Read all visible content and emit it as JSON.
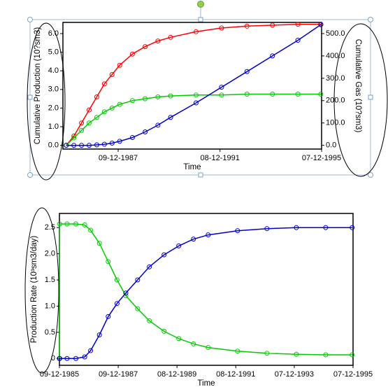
{
  "chart_data": [
    {
      "type": "line",
      "ylabel": "Cumulative Production (10?sm3)",
      "y2label": "Cumulative Gas (10?sm3)",
      "xlabel": "Time",
      "x": [
        1985.9,
        1986.2,
        1986.5,
        1986.8,
        1987.1,
        1987.4,
        1987.7,
        1988.0,
        1988.5,
        1989.0,
        1989.5,
        1990.0,
        1991.0,
        1992.0,
        1993.0,
        1994.0,
        1995.0,
        1995.9
      ],
      "xlim": [
        1985.77,
        1995.93
      ],
      "xticks": [
        {
          "value": 1987.94,
          "label": "09-12-1987"
        },
        {
          "value": 1991.94,
          "label": "08-12-1991"
        },
        {
          "value": 1995.93,
          "label": "07-12-1995"
        }
      ],
      "ylim": [
        -0.2,
        6.6
      ],
      "yticks": [
        {
          "value": 0,
          "label": "0.0"
        },
        {
          "value": 1,
          "label": "1.0"
        },
        {
          "value": 2,
          "label": "2.0"
        },
        {
          "value": 3,
          "label": "3.0"
        },
        {
          "value": 4,
          "label": "4.0"
        },
        {
          "value": 5,
          "label": "5.0"
        },
        {
          "value": 6,
          "label": "6.0"
        }
      ],
      "y2lim": [
        -16.7,
        550
      ],
      "y2ticks": [
        {
          "value": 0,
          "label": "0.0"
        },
        {
          "value": 100,
          "label": "100.0"
        },
        {
          "value": 200,
          "label": "200.0"
        },
        {
          "value": 300,
          "label": "300.0"
        },
        {
          "value": 400,
          "label": "400.0"
        },
        {
          "value": 500,
          "label": "500.0"
        }
      ],
      "grid": false,
      "series": [
        {
          "color": "#ff0000",
          "values": [
            0,
            0.5,
            1.2,
            1.9,
            2.6,
            3.3,
            3.8,
            4.3,
            4.9,
            5.3,
            5.6,
            5.8,
            6.1,
            6.3,
            6.4,
            6.45,
            6.5,
            6.5
          ]
        },
        {
          "color": "#00cc00",
          "values": [
            0,
            0.4,
            0.8,
            1.2,
            1.5,
            1.8,
            2.0,
            2.2,
            2.4,
            2.5,
            2.6,
            2.65,
            2.7,
            2.7,
            2.75,
            2.75,
            2.75,
            2.75
          ]
        },
        {
          "color": "#0000cc",
          "axis": "y2",
          "values": [
            0,
            0,
            0,
            0,
            2,
            5,
            10,
            18,
            35,
            60,
            90,
            125,
            190,
            260,
            330,
            400,
            470,
            540
          ]
        }
      ]
    },
    {
      "type": "line",
      "ylabel": "Production Rate (10³sm3/day)",
      "xlabel": "Time",
      "x": [
        1985.94,
        1985.95,
        1986.2,
        1986.5,
        1986.8,
        1987.0,
        1987.3,
        1987.6,
        1987.9,
        1988.2,
        1988.6,
        1989.0,
        1989.5,
        1990.0,
        1990.5,
        1991.0,
        1992.0,
        1993.0,
        1994.0,
        1995.0,
        1995.9
      ],
      "xlim": [
        1985.94,
        1995.93
      ],
      "xticks": [
        {
          "value": 1985.94,
          "label": "09-12-1985"
        },
        {
          "value": 1987.94,
          "label": "09-12-1987"
        },
        {
          "value": 1989.94,
          "label": "08-12-1989"
        },
        {
          "value": 1991.94,
          "label": "08-12-1991"
        },
        {
          "value": 1993.93,
          "label": "07-12-1993"
        },
        {
          "value": 1995.93,
          "label": "07-12-1995"
        }
      ],
      "ylim": [
        -0.13,
        2.77
      ],
      "yticks": [
        0,
        0.5,
        {
          "value": 1,
          "label": "1.0"
        },
        1.5,
        {
          "value": 2,
          "label": "2.0"
        },
        2.5
      ],
      "grid": false,
      "series": [
        {
          "color": "#00cc00",
          "values": [
            0,
            2.57,
            2.57,
            2.57,
            2.55,
            2.45,
            2.2,
            1.85,
            1.5,
            1.2,
            0.95,
            0.72,
            0.52,
            0.38,
            0.28,
            0.21,
            0.14,
            0.1,
            0.08,
            0.07,
            0.07
          ]
        },
        {
          "color": "#0000cc",
          "values": [
            0,
            0,
            0,
            0,
            0.03,
            0.15,
            0.45,
            0.8,
            1.05,
            1.25,
            1.5,
            1.75,
            1.98,
            2.15,
            2.28,
            2.36,
            2.44,
            2.48,
            2.5,
            2.5,
            2.5
          ]
        }
      ]
    }
  ]
}
